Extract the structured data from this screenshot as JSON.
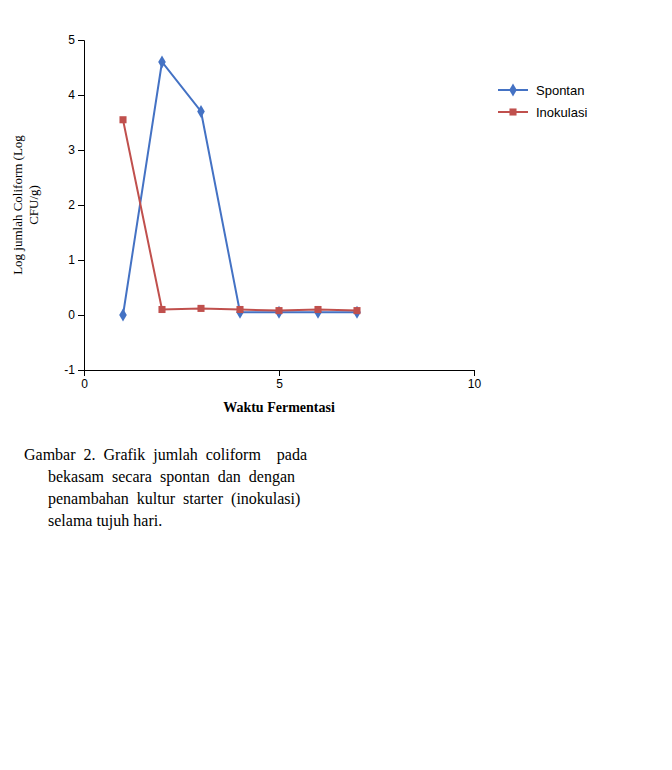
{
  "chart_data": {
    "type": "line",
    "xlabel": "Waktu Fermentasi",
    "ylabel": "Log jumlah Coliform (Log\nCFU/g)",
    "x": [
      1,
      2,
      3,
      4,
      5,
      6,
      7
    ],
    "series": [
      {
        "name": "Spontan",
        "color": "#4472C4",
        "marker": "diamond",
        "values": [
          0,
          4.6,
          3.7,
          0.05,
          0.05,
          0.05,
          0.05
        ]
      },
      {
        "name": "Inokulasi",
        "color": "#C0504D",
        "marker": "square",
        "values": [
          3.55,
          0.1,
          0.12,
          0.1,
          0.08,
          0.1,
          0.08
        ]
      }
    ],
    "xlim": [
      0,
      10
    ],
    "xticks": [
      0,
      5,
      10
    ],
    "ylim": [
      -1,
      5
    ],
    "yticks": [
      -1,
      0,
      1,
      2,
      3,
      4,
      5
    ],
    "legend": "right",
    "annotations": [
      "Gambar  2.  Grafik  jumlah  coliform    pada",
      "      bekasam  secara  spontan  dan  dengan",
      "      penambahan  kultur  starter  (inokulasi)",
      "      selama tujuh hari."
    ]
  }
}
